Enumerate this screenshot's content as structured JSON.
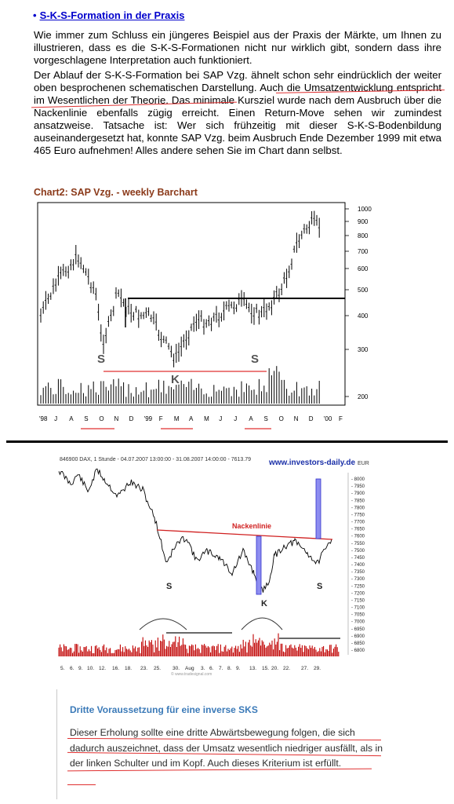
{
  "heading": {
    "bullet": "•",
    "text": "S-K-S-Formation in der Praxis"
  },
  "paragraph1": "Wie immer zum Schluss ein jüngeres Beispiel aus der Praxis der Märkte, um Ihnen zu illustrieren, dass es die S-K-S-Formationen nicht nur wirklich gibt, sondern dass ihre vorgeschlagene Interpretation auch funktioniert.",
  "paragraph2": "Der Ablauf der S-K-S-Formation bei SAP Vzg. ähnelt schon sehr eindrücklich der weiter oben besprochenen schematischen Darstellung. Auch die Umsatzentwicklung entspricht im Wesentlichen der Theorie. Das minimale Kursziel wurde nach dem Ausbruch über die Nackenlinie ebenfalls zügig erreicht. Einen Return-Move sehen wir zumindest ansatzweise. Tatsache ist: Wer sich frühzeitig mit dieser S-K-S-Bodenbildung auseinandergesetzt hat, konnte SAP Vzg. beim Ausbruch Ende Dezember 1999 mit etwa 465 Euro aufnehmen! Alles andere sehen Sie im Chart dann selbst.",
  "chart2": {
    "title": "Chart2:  SAP Vzg.  -  weekly Barchart",
    "y_ticks": [
      "1000",
      "900",
      "800",
      "700",
      "600",
      "500",
      "400",
      "300",
      "200"
    ],
    "x_labels": [
      "'98",
      "J",
      "A",
      "S",
      "O",
      "N",
      "D",
      "'99",
      "F",
      "M",
      "A",
      "M",
      "J",
      "J",
      "A",
      "S",
      "O",
      "N",
      "D",
      "'00",
      "F"
    ],
    "markers": {
      "left_shoulder": "S",
      "head": "K",
      "right_shoulder": "S"
    }
  },
  "chart3": {
    "header": "846900 DAX, 1 Stunde - 04.07.2007 13:00:00 - 31.08.2007 14:00:00 - 7613.79",
    "brand": "www.investors-daily.de",
    "currency": "EUR",
    "neckline_label": "Nackenlinie",
    "y_ticks": [
      "8000",
      "7950",
      "7900",
      "7850",
      "7800",
      "7750",
      "7700",
      "7650",
      "7600",
      "7550",
      "7500",
      "7450",
      "7400",
      "7350",
      "7300",
      "7250",
      "7200",
      "7150",
      "7100",
      "7050",
      "7000",
      "6950",
      "6900",
      "6850",
      "6800"
    ],
    "x_labels": [
      "5.",
      "6.",
      "9.",
      "10.",
      "12.",
      "16.",
      "18.",
      "23.",
      "25.",
      "30.",
      "Aug",
      "3.",
      "6.",
      "7.",
      "8.",
      "9.",
      "13.",
      "15.",
      "20.",
      "22.",
      "27.",
      "29."
    ],
    "markers": {
      "left_shoulder": "S",
      "head": "K",
      "right_shoulder": "S"
    },
    "watermark": "© www.tradesignal.com"
  },
  "box3": {
    "title": "Dritte Voraussetzung für eine inverse SKS",
    "text": "Dieser Erholung sollte eine dritte Abwärtsbewegung folgen, die sich dadurch auszeichnet, dass der Umsatz wesentlich niedriger ausfällt, als in der linken Schulter und im Kopf. Auch dieses Kriterium ist erfüllt."
  },
  "colors": {
    "link": "#0000cc",
    "chart_title": "#8b3a1a",
    "annotation": "#e03030",
    "box_title": "#3b7ab8",
    "volume": "#c00000"
  }
}
